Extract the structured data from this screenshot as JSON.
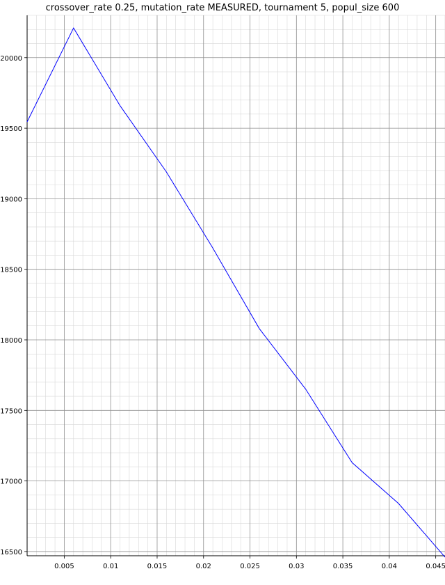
{
  "chart_data": {
    "type": "line",
    "title": "crossover_rate 0.25, mutation_rate MEASURED, tournament 5, popul_size 600",
    "xlabel": "",
    "ylabel": "",
    "xlim": [
      0.001,
      0.046
    ],
    "ylim": [
      16470,
      20300
    ],
    "grid": true,
    "x_ticks": [
      0.005,
      0.01,
      0.015,
      0.02,
      0.025,
      0.03,
      0.035,
      0.04,
      0.045
    ],
    "x_tick_labels": [
      "0.005",
      "0.01",
      "0.015",
      "0.02",
      "0.025",
      "0.03",
      "0.035",
      "0.04",
      "0.045"
    ],
    "y_ticks": [
      16500,
      17000,
      17500,
      18000,
      18500,
      19000,
      19500,
      20000
    ],
    "y_tick_labels": [
      "16500",
      "17000",
      "17500",
      "18000",
      "18500",
      "19000",
      "19500",
      "20000"
    ],
    "series": [
      {
        "color": "#0000ff",
        "x": [
          0.001,
          0.006,
          0.011,
          0.016,
          0.021,
          0.026,
          0.031,
          0.036,
          0.041,
          0.046
        ],
        "y": [
          19545,
          20210,
          19660,
          19190,
          18650,
          18080,
          17650,
          17130,
          16840,
          16460
        ]
      }
    ]
  }
}
